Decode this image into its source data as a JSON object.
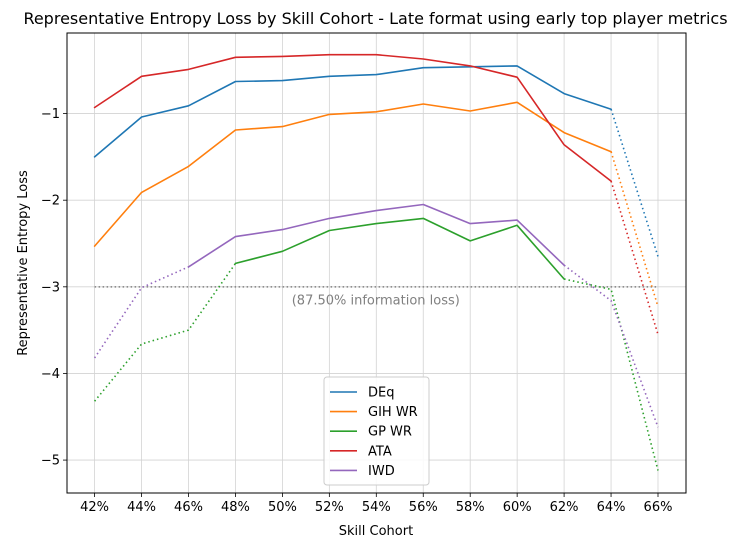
{
  "chart_data": {
    "type": "line",
    "title": "Representative Entropy Loss by Skill Cohort - Late format using early top player metrics",
    "xlabel": "Skill Cohort",
    "ylabel": "Representative Entropy Loss",
    "categories": [
      "42%",
      "44%",
      "46%",
      "48%",
      "50%",
      "52%",
      "54%",
      "56%",
      "58%",
      "60%",
      "62%",
      "64%",
      "66%"
    ],
    "ylim": [
      -5.38,
      -0.07
    ],
    "yticks": [
      -5,
      -4,
      -3,
      -2,
      -1
    ],
    "ytick_labels": [
      "−5",
      "−4",
      "−3",
      "−2",
      "−1"
    ],
    "grid": true,
    "legend_position": "lower center",
    "series": [
      {
        "name": "DEq",
        "color": "#1f77b4",
        "values": [
          -1.5,
          -1.04,
          -0.91,
          -0.63,
          -0.62,
          -0.57,
          -0.55,
          -0.47,
          -0.46,
          -0.45,
          -0.77,
          -0.95,
          -2.65
        ],
        "solid": [
          [
            0,
            11
          ]
        ],
        "dotted": [
          [
            11,
            12
          ]
        ]
      },
      {
        "name": "GIH WR",
        "color": "#ff7f0e",
        "values": [
          -2.53,
          -1.91,
          -1.61,
          -1.19,
          -1.15,
          -1.01,
          -0.98,
          -0.89,
          -0.97,
          -0.87,
          -1.22,
          -1.44,
          -3.23
        ],
        "solid": [
          [
            0,
            11
          ]
        ],
        "dotted": [
          [
            11,
            12
          ]
        ]
      },
      {
        "name": "GP WR",
        "color": "#2ca02c",
        "values": [
          -4.32,
          -3.66,
          -3.5,
          -2.73,
          -2.59,
          -2.35,
          -2.27,
          -2.21,
          -2.47,
          -2.29,
          -2.91,
          -3.03,
          -5.12
        ],
        "solid": [
          [
            3,
            10
          ]
        ],
        "dotted": [
          [
            0,
            3
          ],
          [
            10,
            12
          ]
        ]
      },
      {
        "name": "ATA",
        "color": "#d62728",
        "values": [
          -0.93,
          -0.57,
          -0.49,
          -0.35,
          -0.34,
          -0.32,
          -0.32,
          -0.37,
          -0.45,
          -0.58,
          -1.36,
          -1.78,
          -3.55
        ],
        "solid": [
          [
            0,
            11
          ]
        ],
        "dotted": [
          [
            11,
            12
          ]
        ]
      },
      {
        "name": "IWD",
        "color": "#9467bd",
        "values": [
          -3.82,
          -3.01,
          -2.77,
          -2.42,
          -2.34,
          -2.21,
          -2.12,
          -2.05,
          -2.27,
          -2.23,
          -2.75,
          -3.16,
          -4.62
        ],
        "solid": [
          [
            2,
            10
          ]
        ],
        "dotted": [
          [
            0,
            2
          ],
          [
            10,
            12
          ]
        ]
      }
    ],
    "reference_line": {
      "y": -3.0,
      "color": "#808080",
      "style": "dotted"
    },
    "annotation": {
      "text": "(87.50% information loss)",
      "x_category_index": 6,
      "y": -3.15
    }
  }
}
